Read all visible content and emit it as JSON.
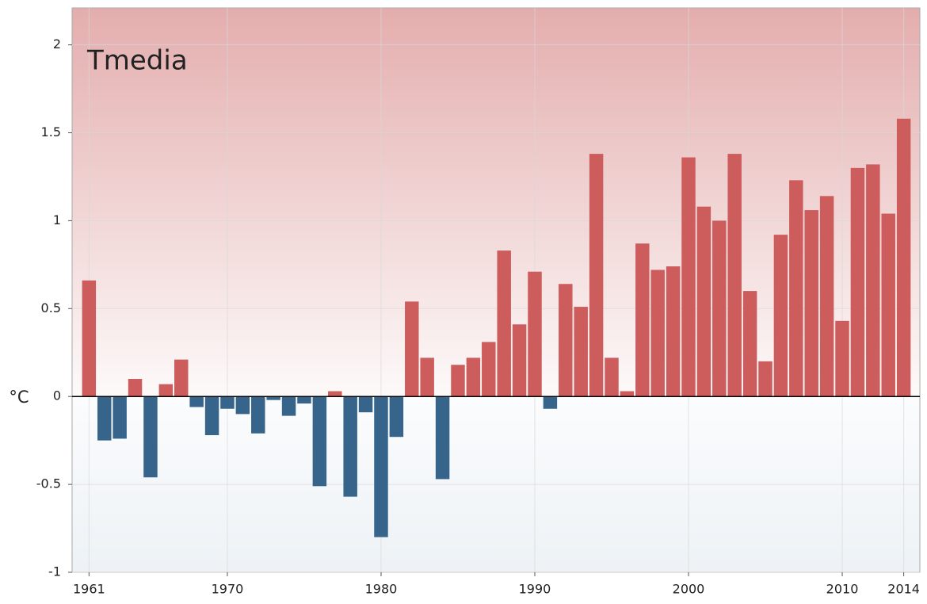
{
  "chart_data": {
    "type": "bar",
    "title": "Tmedia",
    "y_label": "°C",
    "x": [
      1961,
      1962,
      1963,
      1964,
      1965,
      1966,
      1967,
      1968,
      1969,
      1970,
      1971,
      1972,
      1973,
      1974,
      1975,
      1976,
      1977,
      1978,
      1979,
      1980,
      1981,
      1982,
      1983,
      1984,
      1985,
      1986,
      1987,
      1988,
      1989,
      1990,
      1991,
      1992,
      1993,
      1994,
      1995,
      1996,
      1997,
      1998,
      1999,
      2000,
      2001,
      2002,
      2003,
      2004,
      2005,
      2006,
      2007,
      2008,
      2009,
      2010,
      2011,
      2012,
      2013,
      2014
    ],
    "values": [
      0.66,
      -0.25,
      -0.24,
      0.1,
      -0.46,
      0.07,
      0.21,
      -0.06,
      -0.22,
      -0.07,
      -0.1,
      -0.21,
      -0.02,
      -0.11,
      -0.04,
      -0.51,
      0.03,
      -0.57,
      -0.09,
      -0.8,
      -0.23,
      0.54,
      0.22,
      -0.47,
      0.18,
      0.22,
      0.31,
      0.83,
      0.41,
      0.71,
      -0.07,
      0.64,
      0.51,
      1.38,
      0.22,
      0.03,
      0.87,
      0.72,
      0.74,
      1.36,
      1.08,
      1.0,
      1.38,
      0.6,
      0.2,
      0.92,
      1.23,
      1.06,
      1.14,
      0.43,
      1.3,
      1.32,
      1.04,
      1.58
    ],
    "positive_color": "#cd5c5c",
    "negative_color": "#36648b",
    "xlim": [
      1959.9,
      2015.05
    ],
    "xticks": [
      1961,
      1970,
      1980,
      1990,
      2000,
      2010,
      2014
    ],
    "ylim": [
      -1,
      2.21
    ],
    "yticks": [
      -1,
      -0.5,
      0,
      0.5,
      1,
      1.5,
      2
    ],
    "grid": true
  }
}
